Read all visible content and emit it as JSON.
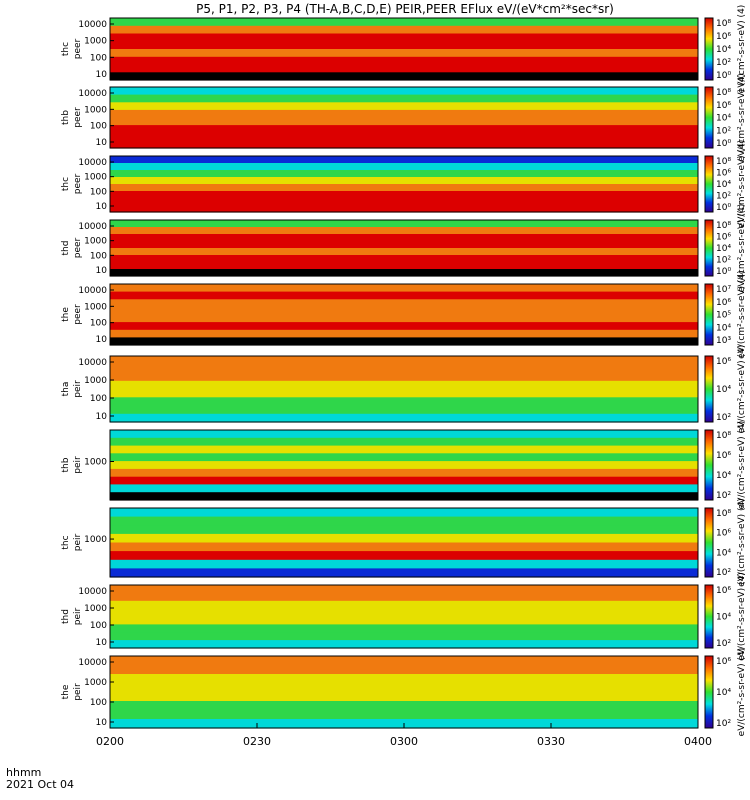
{
  "title": "P5, P1, P2, P3, P4 (TH-A,B,C,D,E) PEIR,PEER EFlux eV/(eV*cm²*sec*sr)",
  "footer": {
    "time_label": "hhmm",
    "date_label": "2021 Oct 04"
  },
  "colors": {
    "red": "#dc0000",
    "orange": "#f07a10",
    "yellow": "#e6e000",
    "green": "#2fd64a",
    "cyan": "#00d8d8",
    "blue": "#0a2ad6",
    "black": "#000000"
  },
  "chart_data": {
    "type": "heatmap",
    "x_range": [
      "0200",
      "0400"
    ],
    "x_tick_labels": [
      "0200",
      "0230",
      "0300",
      "0330",
      "0400"
    ],
    "panels": [
      {
        "label1": "thc",
        "label2": "peer",
        "y_ticks": [
          "10000",
          "1000",
          "100",
          "10"
        ],
        "log_y": true,
        "bands": [
          "green",
          "orange",
          "red",
          "red",
          "orange",
          "red",
          "red",
          "black"
        ],
        "colorbar_ticks": [
          "10⁸",
          "10⁶",
          "10⁴",
          "10²",
          "10⁰"
        ],
        "colorbar_label": "eV/(cm²-s-sr-eV) (4)"
      },
      {
        "label1": "thb",
        "label2": "peer",
        "y_ticks": [
          "10000",
          "1000",
          "100",
          "10"
        ],
        "log_y": true,
        "bands": [
          "cyan",
          "green",
          "yellow",
          "orange",
          "orange",
          "red",
          "red",
          "red"
        ],
        "colorbar_ticks": [
          "10⁸",
          "10⁶",
          "10⁴",
          "10²",
          "10⁰"
        ],
        "colorbar_label": "eV/(cm²-s-sr-eV) (4)"
      },
      {
        "label1": "thc",
        "label2": "peer",
        "y_ticks": [
          "10000",
          "1000",
          "100",
          "10"
        ],
        "log_y": true,
        "bands": [
          "blue",
          "cyan",
          "green",
          "yellow",
          "orange",
          "red",
          "red",
          "red"
        ],
        "colorbar_ticks": [
          "10⁸",
          "10⁶",
          "10⁴",
          "10²",
          "10⁰"
        ],
        "colorbar_label": "eV/(cm²-s-sr-eV) (4)"
      },
      {
        "label1": "thd",
        "label2": "peer",
        "y_ticks": [
          "10000",
          "1000",
          "100",
          "10"
        ],
        "log_y": true,
        "bands": [
          "green",
          "orange",
          "red",
          "red",
          "orange",
          "red",
          "red",
          "black"
        ],
        "colorbar_ticks": [
          "10⁸",
          "10⁶",
          "10⁴",
          "10²",
          "10⁰"
        ],
        "colorbar_label": "eV/(cm²-s-sr-eV) (4)"
      },
      {
        "label1": "the",
        "label2": "peer",
        "y_ticks": [
          "10000",
          "1000",
          "100",
          "10"
        ],
        "log_y": true,
        "bands": [
          "orange",
          "red",
          "orange",
          "orange",
          "orange",
          "red",
          "orange",
          "black"
        ],
        "colorbar_ticks": [
          "10⁷",
          "10⁶",
          "10⁵",
          "10⁴",
          "10³"
        ],
        "colorbar_label": "eV/(cm²-s-sr-eV) (4)"
      },
      {
        "label1": "tha",
        "label2": "peir",
        "y_ticks": [
          "10000",
          "1000",
          "100",
          "10"
        ],
        "log_y": true,
        "bands": [
          "orange",
          "orange",
          "orange",
          "yellow",
          "yellow",
          "green",
          "green",
          "cyan"
        ],
        "colorbar_ticks": [
          "10⁶",
          "10⁴",
          "10²"
        ],
        "colorbar_label": "eV/(cm²-s-sr-eV) (4)"
      },
      {
        "label1": "thb",
        "label2": "peir",
        "y_ticks": [
          "1000"
        ],
        "log_y": true,
        "bands": [
          "cyan",
          "green",
          "yellow",
          "green",
          "yellow",
          "orange",
          "red",
          "cyan",
          "black"
        ],
        "colorbar_ticks": [
          "10⁸",
          "10⁶",
          "10⁴",
          "10²"
        ],
        "colorbar_label": "eV/(cm²-s-sr-eV) (4)"
      },
      {
        "label1": "thc",
        "label2": "peir",
        "y_ticks": [
          "1000"
        ],
        "log_y": true,
        "bands": [
          "cyan",
          "green",
          "green",
          "yellow",
          "orange",
          "red",
          "cyan",
          "blue"
        ],
        "colorbar_ticks": [
          "10⁸",
          "10⁶",
          "10⁴",
          "10²"
        ],
        "colorbar_label": "eV/(cm²-s-sr-eV) (4)"
      },
      {
        "label1": "thd",
        "label2": "peir",
        "y_ticks": [
          "10000",
          "1000",
          "100",
          "10"
        ],
        "log_y": true,
        "bands": [
          "orange",
          "orange",
          "yellow",
          "yellow",
          "yellow",
          "green",
          "green",
          "cyan"
        ],
        "colorbar_ticks": [
          "10⁶",
          "10⁴",
          "10²"
        ],
        "colorbar_label": "eV/(cm²-s-sr-eV) (4)"
      },
      {
        "label1": "the",
        "label2": "peir",
        "y_ticks": [
          "10000",
          "1000",
          "100",
          "10"
        ],
        "log_y": true,
        "bands": [
          "orange",
          "orange",
          "yellow",
          "yellow",
          "yellow",
          "green",
          "green",
          "cyan"
        ],
        "colorbar_ticks": [
          "10⁶",
          "10⁴",
          "10²"
        ],
        "colorbar_label": "eV/(cm²-s-sr-eV) (4)"
      }
    ]
  }
}
